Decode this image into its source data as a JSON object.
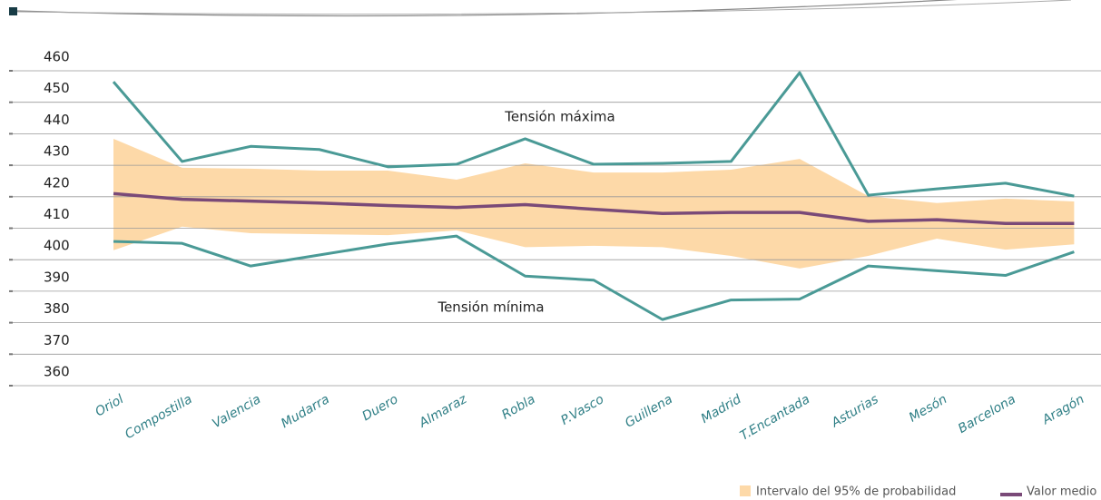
{
  "chart_data": {
    "type": "line",
    "categories": [
      "Oriol",
      "Compostilla",
      "Valencia",
      "Mudarra",
      "Duero",
      "Almaraz",
      "Robla",
      "P.Vasco",
      "Guillena",
      "Madrid",
      "T.Encantada",
      "Asturias",
      "Mesón",
      "Barcelona",
      "Aragón"
    ],
    "series": [
      {
        "name": "Tensión máxima",
        "color": "#4a9a96",
        "values": [
          456.5,
          431.2,
          436,
          435,
          429.5,
          430.3,
          438.4,
          430.3,
          430.6,
          431.2,
          459.4,
          420.5,
          422.5,
          424.3,
          420.2
        ]
      },
      {
        "name": "Tensión mínima",
        "color": "#4a9a96",
        "values": [
          405.8,
          405.2,
          398,
          401.5,
          405,
          407.5,
          394.8,
          393.5,
          381,
          387.2,
          387.5,
          398,
          396.5,
          395,
          402.5
        ]
      }
    ],
    "mean": {
      "name": "Valor medio",
      "color": "#7a4a78",
      "values": [
        421,
        419.2,
        418.6,
        418,
        417.2,
        416.6,
        417.5,
        416,
        414.7,
        415,
        415,
        412.2,
        412.7,
        411.5,
        411.5
      ]
    },
    "band": {
      "name": "Intervalo del 95% de probabilidad",
      "color": "#fdd9a8",
      "upper": [
        438.4,
        429.2,
        428.9,
        428.3,
        428.3,
        425.4,
        430.6,
        427.7,
        427.7,
        428.6,
        432,
        420.2,
        418,
        419.4,
        418.5
      ],
      "lower": [
        403,
        410.5,
        408.4,
        408.1,
        407.8,
        409.3,
        404,
        404.4,
        404,
        401.2,
        397.2,
        401.2,
        406.7,
        403.2,
        404.9
      ]
    },
    "ylim": [
      360,
      460
    ],
    "yticks": [
      360,
      370,
      380,
      390,
      400,
      410,
      420,
      430,
      440,
      450,
      460
    ],
    "grid": true
  }
}
